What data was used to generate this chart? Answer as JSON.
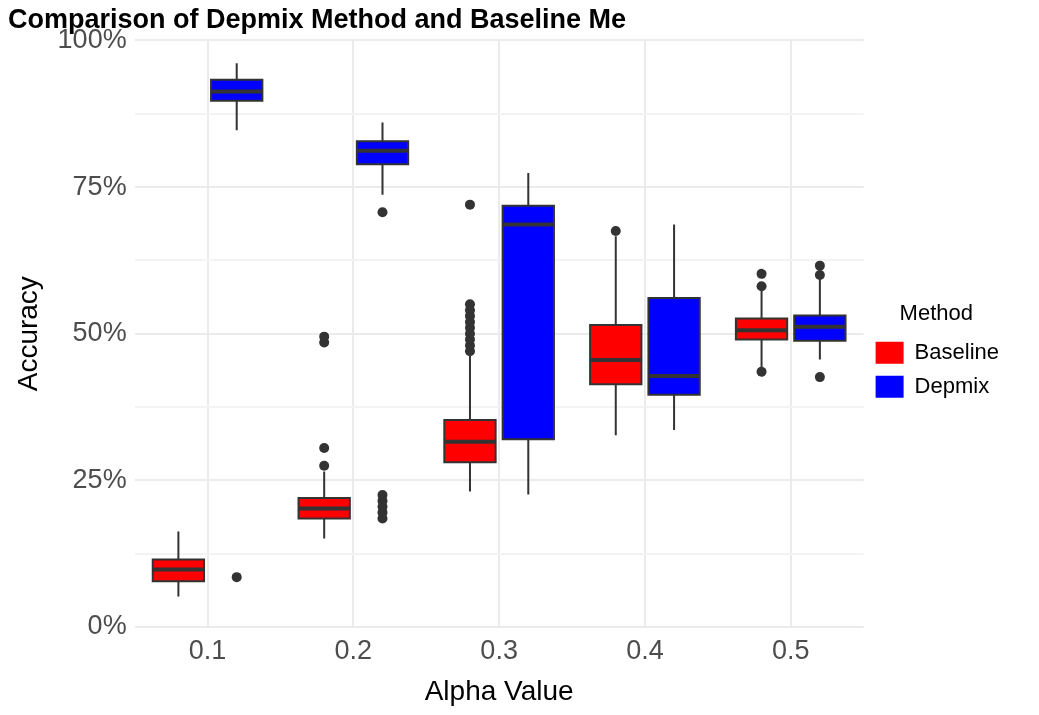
{
  "chart_data": {
    "type": "box",
    "title": "Comparison of Depmix Method and Baseline Me",
    "xlabel": "Alpha Value",
    "ylabel": "Accuracy",
    "legend_title": "Method",
    "legend": "right",
    "grid": true,
    "categories": [
      "0.1",
      "0.2",
      "0.3",
      "0.4",
      "0.5"
    ],
    "ylim": [
      0,
      100
    ],
    "yticks": [
      {
        "value": 0,
        "label": "0%"
      },
      {
        "value": 12.5,
        "label": null
      },
      {
        "value": 25,
        "label": "25%"
      },
      {
        "value": 37.5,
        "label": null
      },
      {
        "value": 50,
        "label": "50%"
      },
      {
        "value": 62.5,
        "label": null
      },
      {
        "value": 75,
        "label": "75%"
      },
      {
        "value": 87.5,
        "label": null
      },
      {
        "value": 100,
        "label": "100%"
      }
    ],
    "series": [
      {
        "name": "Baseline",
        "color": "#ff0000",
        "boxes": [
          {
            "low": 5.2,
            "q1": 7.8,
            "median": 9.8,
            "q3": 11.5,
            "high": 16.3
          },
          {
            "low": 15.1,
            "q1": 18.5,
            "median": 20.2,
            "q3": 22,
            "high": 26.5,
            "outliers": [
              27.5,
              30.5,
              48.5,
              49.5
            ]
          },
          {
            "low": 23.1,
            "q1": 28.1,
            "median": 31.6,
            "q3": 35.3,
            "high": 46.9,
            "outliers": [
              47,
              48,
              49,
              50,
              51,
              52,
              53,
              54,
              55,
              72
            ]
          },
          {
            "low": 32.7,
            "q1": 41.4,
            "median": 45.5,
            "q3": 51.5,
            "high": 66.6,
            "outliers": [
              67.5
            ]
          },
          {
            "low": 44,
            "q1": 49,
            "median": 50.6,
            "q3": 52.6,
            "high": 57.5,
            "outliers": [
              43.5,
              58.1,
              60.2
            ]
          }
        ]
      },
      {
        "name": "Depmix",
        "color": "#0000ff",
        "boxes": [
          {
            "low": 84.7,
            "q1": 89.7,
            "median": 91.3,
            "q3": 93.3,
            "high": 96.1,
            "outliers": [
              8.5
            ]
          },
          {
            "low": 73.7,
            "q1": 78.9,
            "median": 81.2,
            "q3": 82.8,
            "high": 86,
            "outliers": [
              18.5,
              19.5,
              20.5,
              21.5,
              22.5,
              70.7
            ]
          },
          {
            "low": 22.6,
            "q1": 32,
            "median": 68.6,
            "q3": 71.8,
            "high": 77.4
          },
          {
            "low": 33.6,
            "q1": 39.6,
            "median": 42.8,
            "q3": 56.1,
            "high": 68.6
          },
          {
            "low": 45.6,
            "q1": 48.8,
            "median": 51.2,
            "q3": 53.1,
            "high": 59.5,
            "outliers": [
              42.6,
              60,
              61.6
            ]
          }
        ]
      }
    ]
  }
}
